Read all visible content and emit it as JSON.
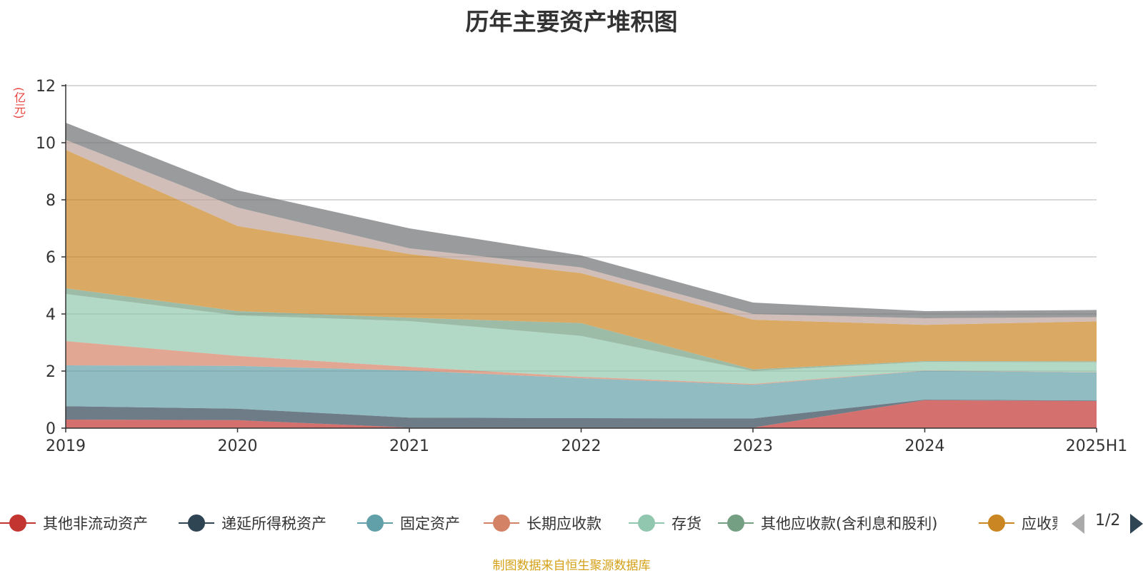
{
  "title": "历年主要资产堆积图",
  "unit_label": "(亿元)",
  "source_note": "制图数据来自恒生聚源数据库",
  "legend": {
    "page_indicator": "1/2",
    "items": [
      {
        "label": "其他非流动资产",
        "color": "#c23531"
      },
      {
        "label": "递延所得税资产",
        "color": "#2f4554"
      },
      {
        "label": "固定资产",
        "color": "#61a0a8"
      },
      {
        "label": "长期应收款",
        "color": "#d48265"
      },
      {
        "label": "存货",
        "color": "#91c7ae"
      },
      {
        "label": "其他应收款(含利息和股利)",
        "color": "#749f83"
      },
      {
        "label": "应收票据及应收账款",
        "color": "#ca8622"
      }
    ]
  },
  "chart_data": {
    "type": "area",
    "stacked": true,
    "title": "历年主要资产堆积图",
    "ylabel": "(亿元)",
    "ylim": [
      0,
      12
    ],
    "yticks": [
      0,
      2,
      4,
      6,
      8,
      10,
      12
    ],
    "categories": [
      "2019",
      "2020",
      "2021",
      "2022",
      "2023",
      "2024",
      "2025H1"
    ],
    "grid": true,
    "legend_position": "bottom",
    "series": [
      {
        "name": "其他非流动资产",
        "color": "#c23531",
        "values": [
          0.3,
          0.28,
          0.02,
          0.02,
          0.02,
          0.98,
          0.95
        ]
      },
      {
        "name": "递延所得税资产",
        "color": "#2f4554",
        "values": [
          0.47,
          0.4,
          0.35,
          0.33,
          0.32,
          0.02,
          0.02
        ]
      },
      {
        "name": "固定资产",
        "color": "#61a0a8",
        "values": [
          1.43,
          1.5,
          1.65,
          1.4,
          1.18,
          1.01,
          0.98
        ]
      },
      {
        "name": "长期应收款",
        "color": "#d48265",
        "values": [
          0.85,
          0.35,
          0.13,
          0.05,
          0.03,
          0.01,
          0.01
        ]
      },
      {
        "name": "存货",
        "color": "#91c7ae",
        "values": [
          1.65,
          1.42,
          1.6,
          1.43,
          0.45,
          0.3,
          0.35
        ]
      },
      {
        "name": "其他应收款(含利息和股利)",
        "color": "#749f83",
        "values": [
          0.2,
          0.15,
          0.12,
          0.45,
          0.06,
          0.03,
          0.03
        ]
      },
      {
        "name": "应收票据及应收账款",
        "color": "#ca8622",
        "values": [
          4.85,
          2.98,
          2.23,
          1.75,
          1.74,
          1.27,
          1.4
        ]
      },
      {
        "name": "",
        "color": "#bda29a",
        "values": [
          0.35,
          0.65,
          0.2,
          0.2,
          0.2,
          0.23,
          0.15
        ]
      },
      {
        "name": "",
        "color": "#6e7074",
        "values": [
          0.6,
          0.6,
          0.7,
          0.42,
          0.4,
          0.25,
          0.25
        ]
      }
    ]
  }
}
